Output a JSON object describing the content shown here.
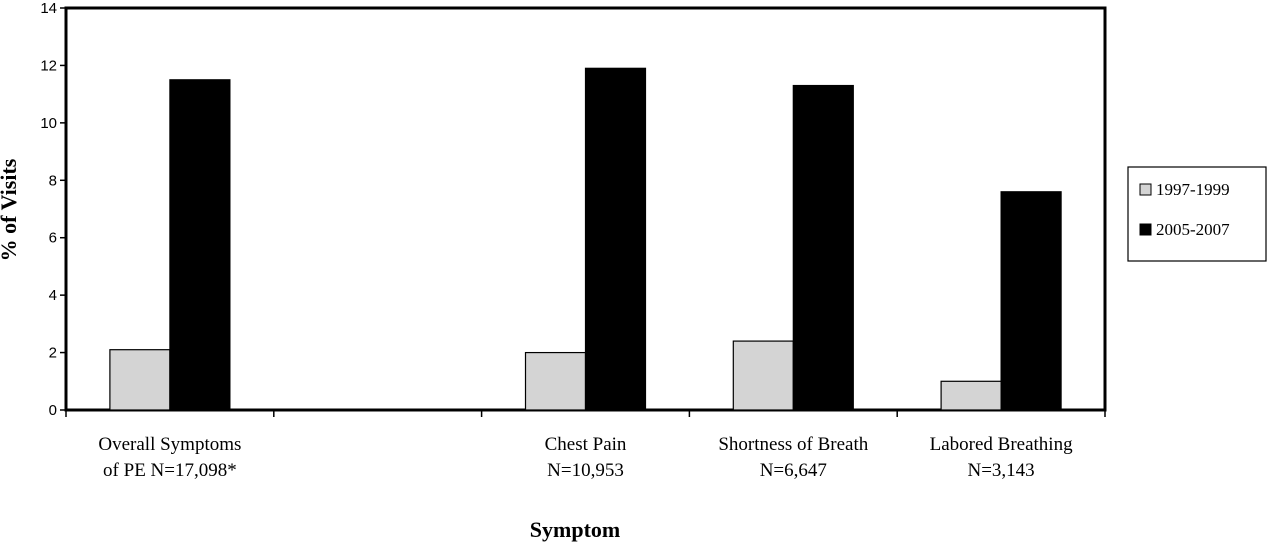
{
  "chart_data": {
    "type": "bar",
    "categories": [
      [
        "Overall Symptoms",
        "of PE N=17,098*"
      ],
      [
        "",
        ""
      ],
      [
        "Chest Pain",
        "N=10,953"
      ],
      [
        "Shortness of Breath",
        "N=6,647"
      ],
      [
        "Labored Breathing",
        "N=3,143"
      ]
    ],
    "series": [
      {
        "name": "1997-1999",
        "values": [
          2.1,
          null,
          2.0,
          2.4,
          1.0
        ],
        "color": "#d4d4d4"
      },
      {
        "name": "2005-2007",
        "values": [
          11.5,
          null,
          11.9,
          11.3,
          7.6
        ],
        "color": "#000000"
      }
    ],
    "xlabel": "Symptom",
    "ylabel": "% of Visits",
    "ylim": [
      0,
      14
    ],
    "yticks": [
      "0",
      "2",
      "4",
      "6",
      "8",
      "10",
      "12",
      "14"
    ],
    "grid": false,
    "legend_position": "right"
  }
}
